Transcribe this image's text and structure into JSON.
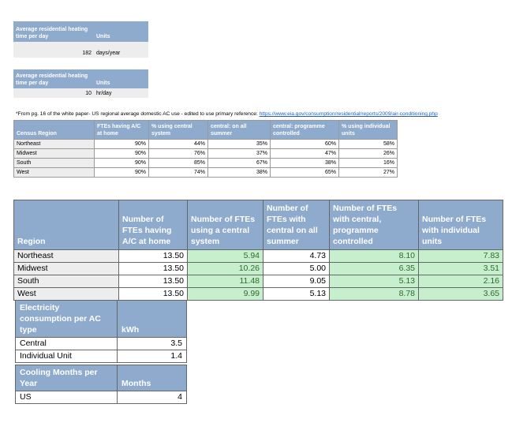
{
  "heating_days": {
    "header_label": "Average residential heating time per day",
    "units_header": "Units",
    "value": "182",
    "unit": "days/year"
  },
  "heating_hours": {
    "header_label": "Average residential heating time per day",
    "units_header": "Units",
    "value": "10",
    "unit": "hr/day"
  },
  "note": {
    "text": "*From pg. 16 of the white paper- US regional average domestic AC use - edited to use primary reference: ",
    "link": "https://www.eia.gov/consumption/residential/reports/2009/air-conditioning.php"
  },
  "census_table": {
    "headers": [
      "Census Region",
      "FTEs having A/C at home",
      "% using central system",
      "central: on all summer",
      "central: programme controlled",
      "% using individual units"
    ],
    "rows": [
      {
        "region": "Northeast",
        "cells": [
          "90%",
          "44%",
          "35%",
          "60%",
          "58%"
        ]
      },
      {
        "region": "Midwest",
        "cells": [
          "90%",
          "76%",
          "37%",
          "47%",
          "26%"
        ]
      },
      {
        "region": "South",
        "cells": [
          "90%",
          "85%",
          "67%",
          "38%",
          "16%"
        ]
      },
      {
        "region": "West",
        "cells": [
          "90%",
          "74%",
          "38%",
          "65%",
          "27%"
        ]
      }
    ]
  },
  "fte_table": {
    "headers": [
      "Region",
      "Number of FTEs having A/C at home",
      "Number of FTEs using a central system",
      "Number of FTEs with central on all summer",
      "Number of FTEs with central, programme controlled",
      "Number of FTEs with individual units"
    ],
    "rows": [
      {
        "region": "Northeast",
        "cells": [
          "13.50",
          "5.94",
          "4.73",
          "8.10",
          "7.83"
        ]
      },
      {
        "region": "Midwest",
        "cells": [
          "13.50",
          "10.26",
          "5.00",
          "6.35",
          "3.51"
        ]
      },
      {
        "region": "South",
        "cells": [
          "13.50",
          "11.48",
          "9.05",
          "5.13",
          "2.16"
        ]
      },
      {
        "region": "West",
        "cells": [
          "13.50",
          "9.99",
          "5.13",
          "8.78",
          "3.65"
        ]
      }
    ]
  },
  "electricity_table": {
    "headers": [
      "Electricity consumption per AC type",
      "kWh"
    ],
    "rows": [
      {
        "label": "Central",
        "value": "3.5"
      },
      {
        "label": "Individual Unit",
        "value": "1.4"
      }
    ]
  },
  "cooling_table": {
    "headers": [
      "Cooling Months per Year",
      "Months"
    ],
    "rows": [
      {
        "label": "US",
        "value": "4"
      }
    ]
  },
  "colors": {
    "header_bg": "#8eaacd",
    "label_bg": "#ededed",
    "highlight_bg": "#c6efce",
    "highlight_text": "#2e6b2e"
  }
}
